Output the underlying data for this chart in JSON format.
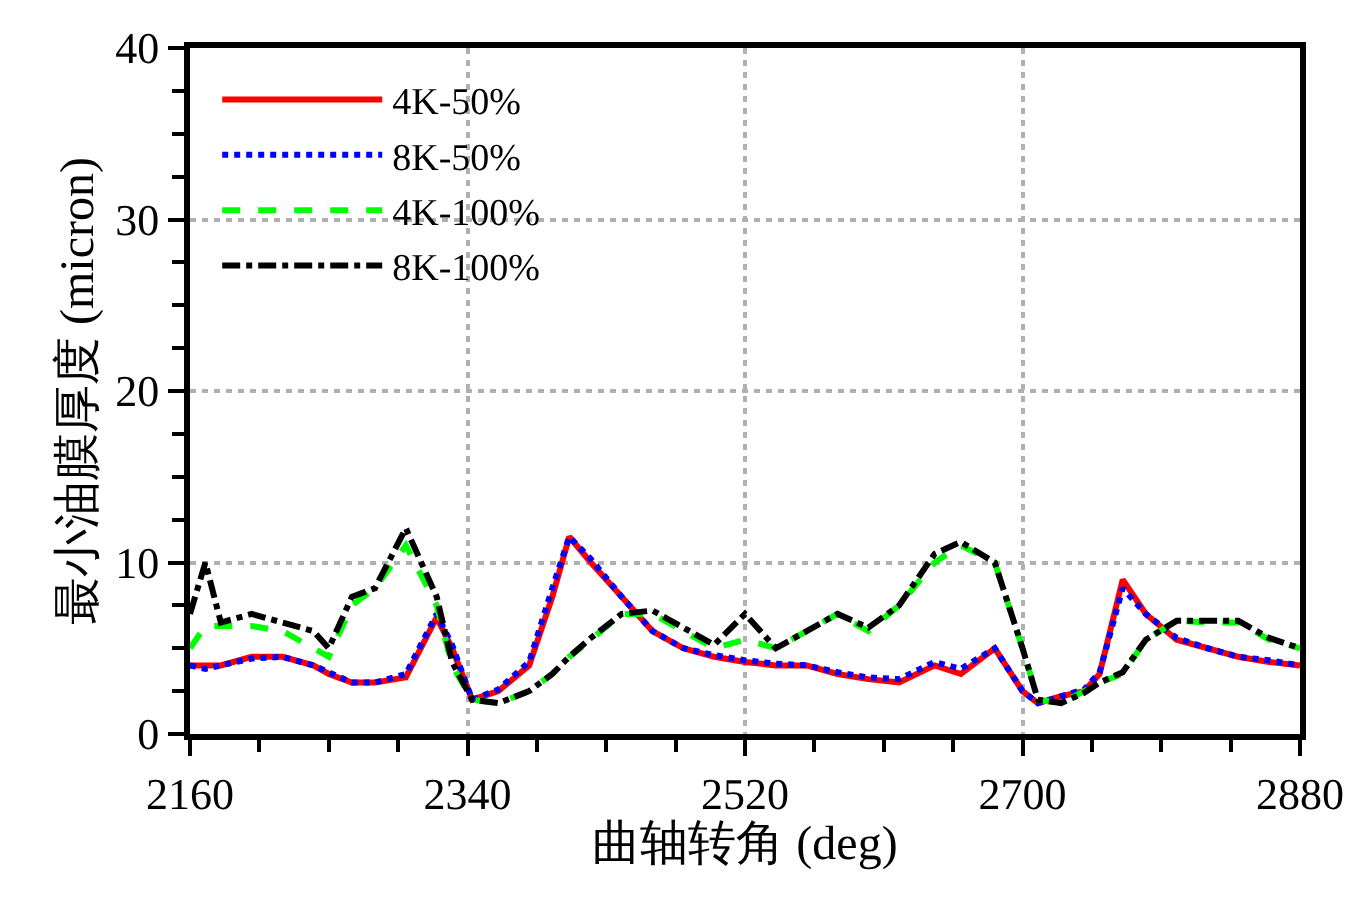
{
  "chart_data": {
    "type": "line",
    "xlabel": "曲轴转角 (deg)",
    "ylabel": "最小油膜厚度 (micron)",
    "x": [
      2160,
      2170,
      2180,
      2200,
      2220,
      2240,
      2250,
      2265,
      2280,
      2300,
      2320,
      2330,
      2343,
      2360,
      2380,
      2395,
      2406,
      2420,
      2440,
      2460,
      2480,
      2500,
      2520,
      2540,
      2560,
      2580,
      2600,
      2620,
      2643,
      2660,
      2682,
      2700,
      2710,
      2725,
      2740,
      2750,
      2765,
      2780,
      2800,
      2820,
      2840,
      2860,
      2880
    ],
    "series": [
      {
        "name": "4K-50%",
        "color": "#ff0000",
        "line_style": "solid",
        "values": [
          4,
          4,
          4,
          4.5,
          4.5,
          4,
          3.5,
          3,
          3,
          3.3,
          6.8,
          5,
          2,
          2.5,
          4,
          8,
          11.5,
          10,
          8,
          6,
          5,
          4.5,
          4.2,
          4,
          4,
          3.5,
          3.2,
          3,
          4,
          3.5,
          5,
          2.5,
          1.8,
          2.2,
          2.5,
          3.5,
          9,
          7,
          5.5,
          5,
          4.5,
          4.2,
          4
        ]
      },
      {
        "name": "8K-50%",
        "color": "#0000ff",
        "line_style": "dotted",
        "values": [
          4,
          3.8,
          4,
          4.4,
          4.5,
          4,
          3.6,
          3,
          3,
          3.5,
          7,
          5.2,
          2,
          2.6,
          4.2,
          8.5,
          11.5,
          10.2,
          8,
          6,
          5,
          4.6,
          4.3,
          4.1,
          4,
          3.6,
          3.3,
          3.2,
          4.2,
          3.8,
          5,
          2.5,
          1.8,
          2.2,
          2.6,
          3.6,
          8.5,
          7,
          5.6,
          5,
          4.5,
          4.3,
          4
        ]
      },
      {
        "name": "4K-100%",
        "color": "#00ff00",
        "line_style": "dashed",
        "values": [
          5,
          6.3,
          6.3,
          6.3,
          6,
          5,
          4.5,
          7.5,
          8.5,
          11,
          7.5,
          4,
          2,
          1.8,
          2.5,
          3.5,
          4.5,
          5.5,
          7,
          7,
          6,
          5,
          5.5,
          5,
          6,
          7,
          6,
          7.5,
          10,
          11,
          10,
          5,
          2,
          1.8,
          2.5,
          3,
          3.5,
          5.5,
          6.6,
          6.5,
          6.5,
          5.5,
          5
        ]
      },
      {
        "name": "8K-100%",
        "color": "#000000",
        "line_style": "dashdot",
        "values": [
          7,
          10,
          6.5,
          7,
          6.5,
          6,
          5,
          8,
          8.5,
          12,
          8,
          4.2,
          2,
          1.8,
          2.5,
          3.5,
          4.5,
          5.6,
          7,
          7.2,
          6.2,
          5.2,
          7,
          5,
          6,
          7,
          6.2,
          7.5,
          10.5,
          11.2,
          10,
          5,
          2,
          1.8,
          2.4,
          3,
          3.6,
          5.5,
          6.6,
          6.6,
          6.6,
          5.6,
          5
        ]
      }
    ],
    "xlim": [
      2160,
      2880
    ],
    "xticks": [
      2160,
      {
        "value": 2205,
        "label": null
      },
      {
        "value": 2250,
        "label": null
      },
      {
        "value": 2295,
        "label": null
      },
      2340,
      {
        "value": 2385,
        "label": null
      },
      {
        "value": 2430,
        "label": null
      },
      {
        "value": 2475,
        "label": null
      },
      2520,
      {
        "value": 2565,
        "label": null
      },
      {
        "value": 2610,
        "label": null
      },
      {
        "value": 2655,
        "label": null
      },
      2700,
      {
        "value": 2745,
        "label": null
      },
      {
        "value": 2790,
        "label": null
      },
      {
        "value": 2835,
        "label": null
      },
      2880
    ],
    "ylim": [
      0,
      40
    ],
    "yticks": [
      0,
      {
        "value": 2.5,
        "label": null
      },
      {
        "value": 5,
        "label": null
      },
      {
        "value": 7.5,
        "label": null
      },
      10,
      {
        "value": 12.5,
        "label": null
      },
      {
        "value": 15,
        "label": null
      },
      {
        "value": 17.5,
        "label": null
      },
      20,
      {
        "value": 22.5,
        "label": null
      },
      {
        "value": 25,
        "label": null
      },
      {
        "value": 27.5,
        "label": null
      },
      30,
      {
        "value": 32.5,
        "label": null
      },
      {
        "value": 35,
        "label": null
      },
      {
        "value": 37.5,
        "label": null
      },
      40
    ],
    "grid": true,
    "legend": "top left",
    "marker": "none"
  }
}
